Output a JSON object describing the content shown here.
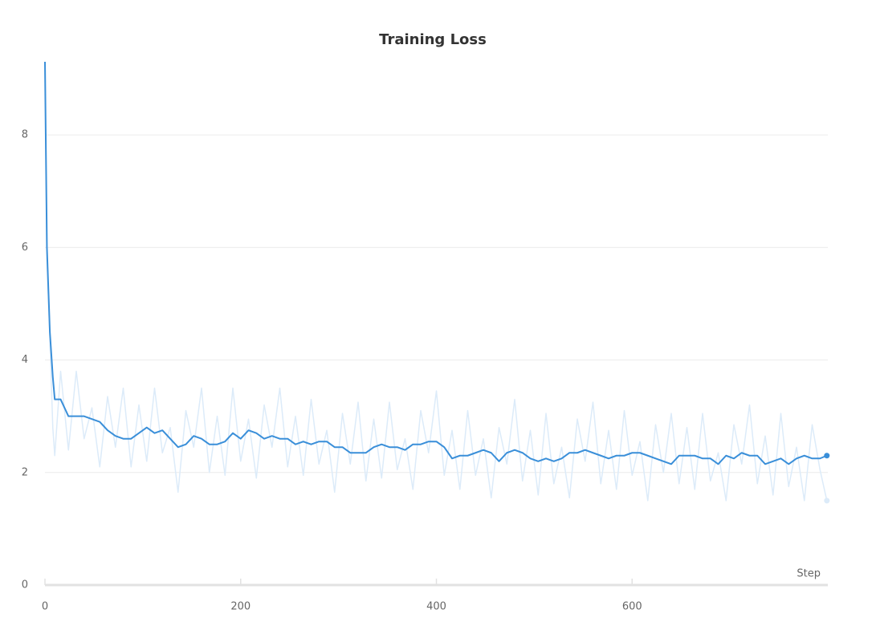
{
  "chart_data": {
    "type": "line",
    "title": "Training Loss",
    "x_label": "Step",
    "x": [
      0,
      2,
      5,
      8,
      10,
      16,
      24,
      32,
      40,
      48,
      56,
      64,
      72,
      80,
      88,
      96,
      104,
      112,
      120,
      128,
      136,
      144,
      152,
      160,
      168,
      176,
      184,
      192,
      200,
      208,
      216,
      224,
      232,
      240,
      248,
      256,
      264,
      272,
      280,
      288,
      296,
      304,
      312,
      320,
      328,
      336,
      344,
      352,
      360,
      368,
      376,
      384,
      392,
      400,
      408,
      416,
      424,
      432,
      440,
      448,
      456,
      464,
      472,
      480,
      488,
      496,
      504,
      512,
      520,
      528,
      536,
      544,
      552,
      560,
      568,
      576,
      584,
      592,
      600,
      608,
      616,
      624,
      632,
      640,
      648,
      656,
      664,
      672,
      680,
      688,
      696,
      704,
      712,
      720,
      728,
      736,
      744,
      752,
      760,
      768,
      776,
      784,
      792,
      799
    ],
    "series": [
      {
        "color": "#dcebf9",
        "values": [
          9.3,
          5.8,
          4.4,
          2.8,
          2.3,
          3.8,
          2.4,
          3.8,
          2.6,
          3.15,
          2.1,
          3.35,
          2.45,
          3.5,
          2.1,
          3.2,
          2.2,
          3.5,
          2.35,
          2.8,
          1.65,
          3.1,
          2.45,
          3.5,
          2.0,
          3.0,
          1.95,
          3.5,
          2.2,
          2.95,
          1.9,
          3.2,
          2.45,
          3.5,
          2.1,
          3.0,
          1.95,
          3.3,
          2.15,
          2.75,
          1.65,
          3.05,
          2.15,
          3.25,
          1.85,
          2.95,
          1.9,
          3.25,
          2.05,
          2.6,
          1.7,
          3.1,
          2.35,
          3.45,
          1.95,
          2.75,
          1.7,
          3.1,
          1.95,
          2.6,
          1.55,
          2.8,
          2.15,
          3.3,
          1.85,
          2.75,
          1.6,
          3.05,
          1.8,
          2.45,
          1.55,
          2.95,
          2.2,
          3.25,
          1.8,
          2.75,
          1.7,
          3.1,
          1.95,
          2.55,
          1.5,
          2.85,
          2.0,
          3.05,
          1.8,
          2.8,
          1.7,
          3.05,
          1.85,
          2.35,
          1.5,
          2.85,
          2.15,
          3.2,
          1.8,
          2.65,
          1.6,
          3.05,
          1.75,
          2.45,
          1.5,
          2.85,
          2.05,
          1.5
        ]
      },
      {
        "color": "#3a8fd9",
        "values": [
          9.3,
          6,
          4.5,
          3.7,
          3.3,
          3.3,
          3.0,
          3.0,
          3.0,
          2.95,
          2.9,
          2.75,
          2.65,
          2.6,
          2.6,
          2.7,
          2.8,
          2.7,
          2.75,
          2.6,
          2.45,
          2.5,
          2.65,
          2.6,
          2.5,
          2.5,
          2.55,
          2.7,
          2.6,
          2.75,
          2.7,
          2.6,
          2.65,
          2.6,
          2.6,
          2.5,
          2.55,
          2.5,
          2.55,
          2.55,
          2.45,
          2.45,
          2.35,
          2.35,
          2.35,
          2.45,
          2.5,
          2.45,
          2.45,
          2.4,
          2.5,
          2.5,
          2.55,
          2.55,
          2.45,
          2.25,
          2.3,
          2.3,
          2.35,
          2.4,
          2.35,
          2.2,
          2.35,
          2.4,
          2.35,
          2.25,
          2.2,
          2.25,
          2.2,
          2.25,
          2.35,
          2.35,
          2.4,
          2.35,
          2.3,
          2.25,
          2.3,
          2.3,
          2.35,
          2.35,
          2.3,
          2.25,
          2.2,
          2.15,
          2.3,
          2.3,
          2.3,
          2.25,
          2.25,
          2.15,
          2.3,
          2.25,
          2.35,
          2.3,
          2.3,
          2.15,
          2.2,
          2.25,
          2.15,
          2.25,
          2.3,
          2.25,
          2.25,
          2.3
        ]
      }
    ],
    "xlim": [
      0,
      800
    ],
    "ylim": [
      0,
      9.3
    ],
    "xticks": [
      0,
      200,
      400,
      600
    ],
    "yticks": [
      0,
      2,
      4,
      6,
      8
    ],
    "grid": true
  }
}
